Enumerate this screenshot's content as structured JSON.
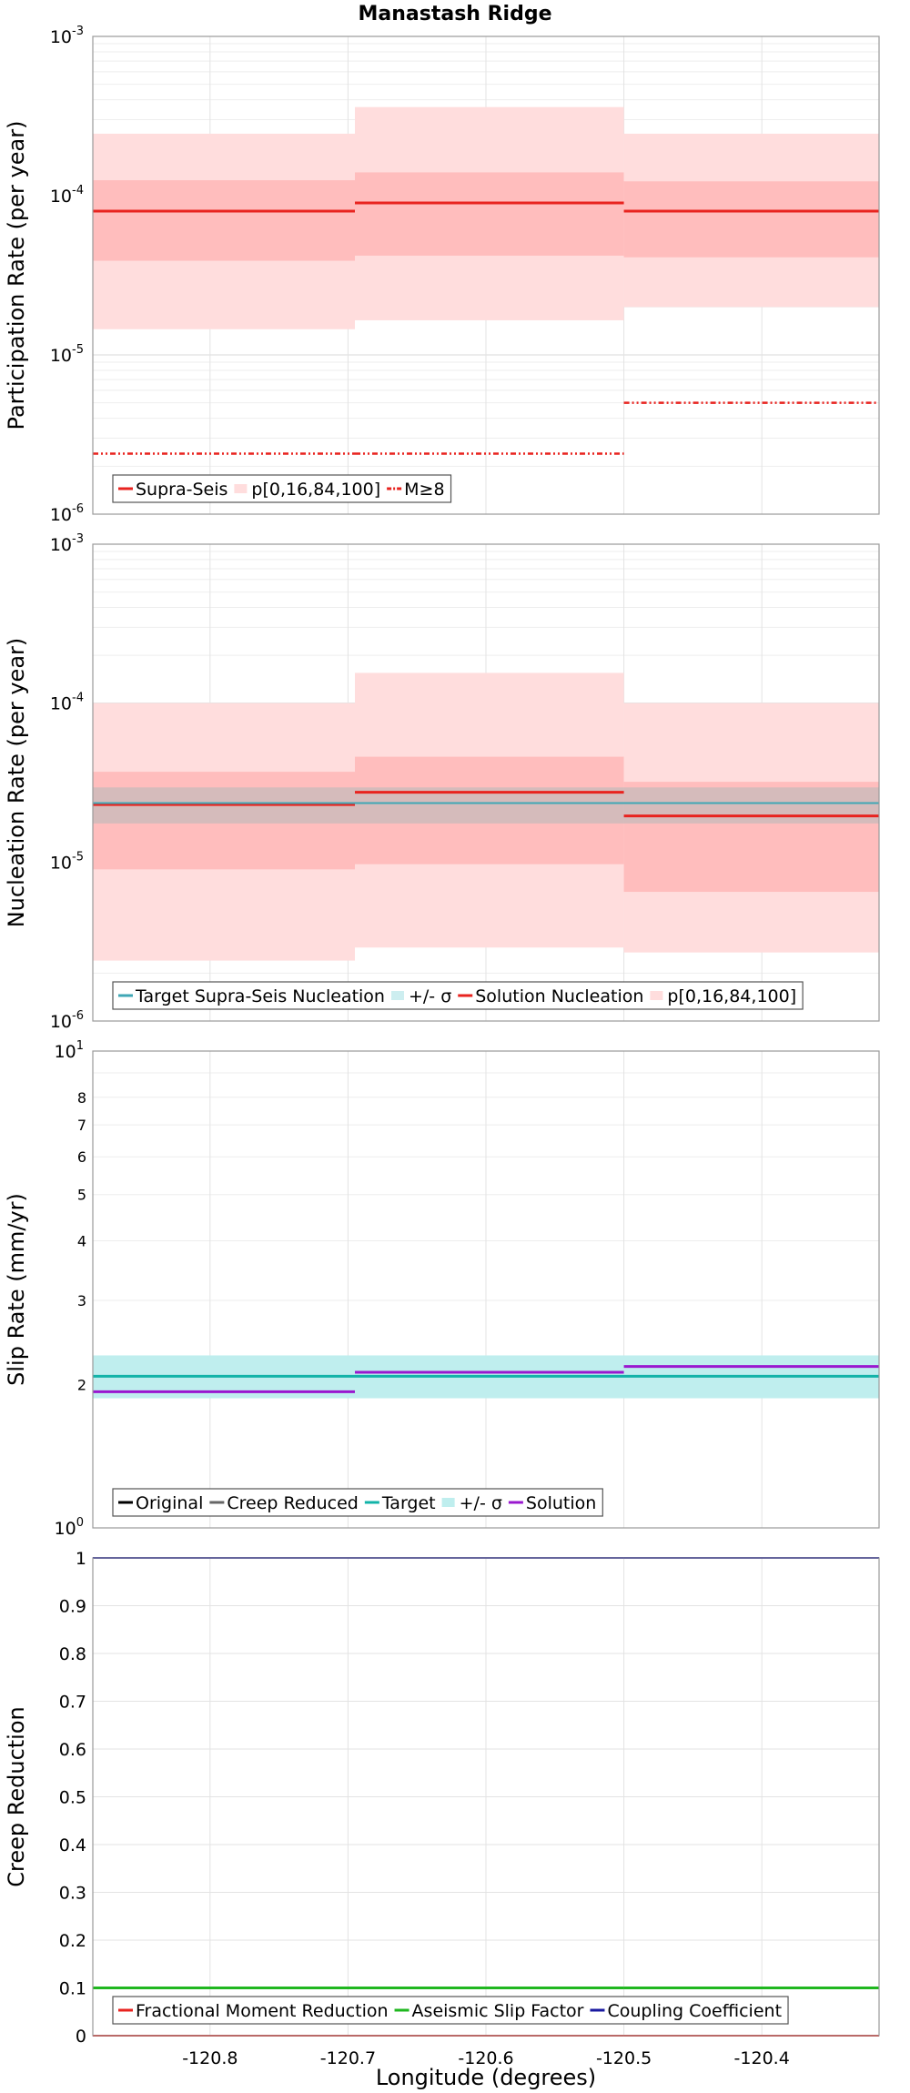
{
  "figure": {
    "title": "Manastash Ridge",
    "xlabel": "Longitude (degrees)",
    "xticks": [
      -120.8,
      -120.7,
      -120.6,
      -120.5,
      -120.4
    ],
    "xlim": [
      -120.885,
      -120.315
    ]
  },
  "colors": {
    "supra": "#e8231f",
    "band_light": "#ffdddd",
    "band_dark": "#ffbdbd",
    "target_nuc": "#3fa7b5",
    "sigma_grey": "#b9b9b9",
    "target_slip": "#12b3a8",
    "sigma_teal": "#bfeeee",
    "solution_slip": "#9a18cf",
    "aseismic": "#1fb71f",
    "coupling": "#1a1aa0",
    "original": "#000000",
    "creep_reduced": "#666666"
  },
  "chart_data": [
    {
      "type": "line",
      "ylabel": "Participation Rate (per year)",
      "yscale": "log",
      "ylim": [
        1e-06,
        0.001
      ],
      "yticks": [
        {
          "base": "10",
          "exp": "-6"
        },
        {
          "base": "10",
          "exp": "-5"
        },
        {
          "base": "10",
          "exp": "-4"
        },
        {
          "base": "10",
          "exp": "-3"
        }
      ],
      "legend": {
        "placement": "bottom-left",
        "entries": [
          "Supra-Seis",
          "p[0,16,84,100]",
          "M≥8"
        ]
      },
      "sections": [
        {
          "x0": -120.885,
          "x1": -120.695,
          "supra": 8e-05,
          "p0": 1.45e-05,
          "p16": 3.9e-05,
          "p84": 0.000125,
          "p100": 0.000245,
          "m8": 2.4e-06
        },
        {
          "x0": -120.695,
          "x1": -120.5,
          "supra": 9e-05,
          "p0": 1.65e-05,
          "p16": 4.2e-05,
          "p84": 0.00014,
          "p100": 0.00036,
          "m8": 2.4e-06
        },
        {
          "x0": -120.5,
          "x1": -120.315,
          "supra": 8e-05,
          "p0": 2e-05,
          "p16": 4.1e-05,
          "p84": 0.000123,
          "p100": 0.000245,
          "m8": 5e-06
        }
      ]
    },
    {
      "type": "line",
      "ylabel": "Nucleation Rate (per year)",
      "yscale": "log",
      "ylim": [
        1e-06,
        0.001
      ],
      "yticks": [
        {
          "base": "10",
          "exp": "-6"
        },
        {
          "base": "10",
          "exp": "-5"
        },
        {
          "base": "10",
          "exp": "-4"
        },
        {
          "base": "10",
          "exp": "-3"
        }
      ],
      "legend": {
        "placement": "bottom-left",
        "entries": [
          "Target Supra-Seis Nucleation",
          "+/- σ",
          "Solution Nucleation",
          "p[0,16,84,100]"
        ]
      },
      "target": {
        "value": 2.35e-05,
        "sigma_low": 1.75e-05,
        "sigma_high": 2.95e-05
      },
      "sections": [
        {
          "x0": -120.885,
          "x1": -120.695,
          "solution": 2.3e-05,
          "p0": 2.4e-06,
          "p16": 9e-06,
          "p84": 3.7e-05,
          "p100": 0.0001
        },
        {
          "x0": -120.695,
          "x1": -120.5,
          "solution": 2.75e-05,
          "p0": 2.9e-06,
          "p16": 9.7e-06,
          "p84": 4.6e-05,
          "p100": 0.000155
        },
        {
          "x0": -120.5,
          "x1": -120.315,
          "solution": 1.95e-05,
          "p0": 2.7e-06,
          "p16": 6.5e-06,
          "p84": 3.2e-05,
          "p100": 0.0001
        }
      ]
    },
    {
      "type": "line",
      "ylabel": "Slip Rate (mm/yr)",
      "yscale": "log",
      "ylim": [
        1,
        10
      ],
      "yticks": [
        {
          "base": "10",
          "exp": "1"
        },
        {
          "base": "10",
          "exp": "0"
        }
      ],
      "minor_ticks": [
        2,
        3,
        4,
        5,
        6,
        7,
        8
      ],
      "legend": {
        "placement": "bottom-left",
        "entries": [
          "Original",
          "Creep Reduced",
          "Target",
          "+/- σ",
          "Solution"
        ]
      },
      "target": {
        "value": 2.08,
        "sigma_low": 1.87,
        "sigma_high": 2.3
      },
      "sections": [
        {
          "x0": -120.885,
          "x1": -120.695,
          "solution": 1.93
        },
        {
          "x0": -120.695,
          "x1": -120.5,
          "solution": 2.12
        },
        {
          "x0": -120.5,
          "x1": -120.315,
          "solution": 2.18
        }
      ]
    },
    {
      "type": "line",
      "ylabel": "Creep Reduction",
      "yscale": "linear",
      "ylim": [
        0,
        1
      ],
      "yticks": [
        "0",
        "0.1",
        "0.2",
        "0.3",
        "0.4",
        "0.5",
        "0.6",
        "0.7",
        "0.8",
        "0.9",
        "1"
      ],
      "legend": {
        "placement": "bottom-left",
        "entries": [
          "Fractional Moment Reduction",
          "Aseismic Slip Factor",
          "Coupling Coefficient"
        ]
      },
      "series": [
        {
          "name": "Fractional Moment Reduction",
          "values": [
            0.0,
            0.0,
            0.0
          ]
        },
        {
          "name": "Aseismic Slip Factor",
          "values": [
            0.1,
            0.1,
            0.1
          ]
        },
        {
          "name": "Coupling Coefficient",
          "values": [
            1.0,
            1.0,
            1.0
          ]
        }
      ]
    }
  ]
}
